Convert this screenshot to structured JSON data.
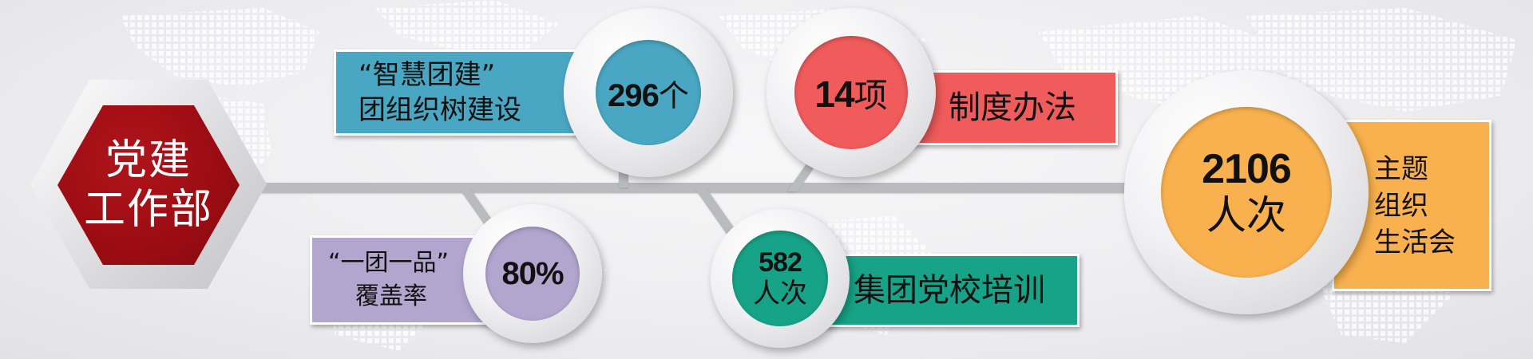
{
  "center_node": {
    "line1": "党建",
    "line2": "工作部",
    "color": "#9a0c12"
  },
  "stats": [
    {
      "id": "smart-league",
      "number": "296",
      "unit": "个",
      "label_lines": [
        "“智慧团建”",
        "团组织树建设"
      ],
      "color": "#4aa7c3"
    },
    {
      "id": "regulations",
      "number": "14",
      "unit": "项",
      "label_lines": [
        "制度办法"
      ],
      "color": "#f05b5b"
    },
    {
      "id": "one-league-one-product",
      "number": "80%",
      "unit": "",
      "label_lines": [
        "“一团一品”",
        "覆盖率"
      ],
      "color": "#b2a6cf"
    },
    {
      "id": "party-school-training",
      "number": "582",
      "unit": "人次",
      "label_lines": [
        "集团党校培训"
      ],
      "color": "#17a387"
    },
    {
      "id": "theme-life-meeting",
      "number": "2106",
      "unit": "人次",
      "label_lines": [
        "主题",
        "组织",
        "生活会"
      ],
      "color": "#f8b14e"
    }
  ]
}
